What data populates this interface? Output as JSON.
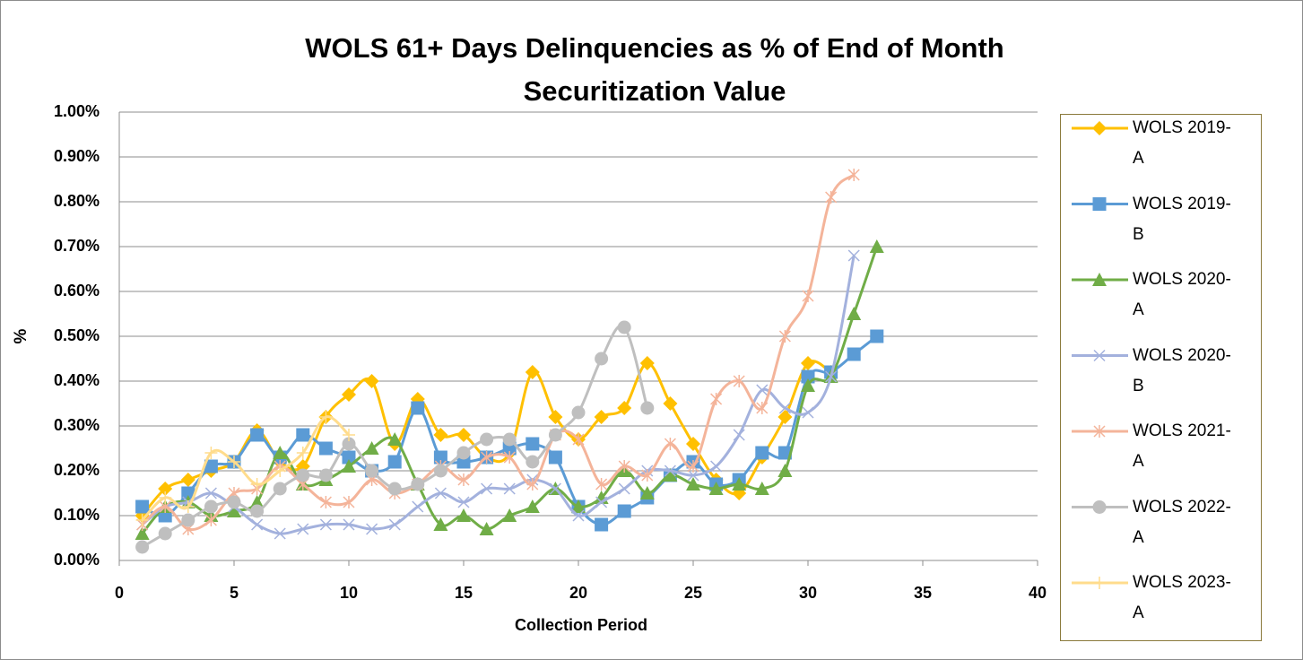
{
  "chart_data": {
    "type": "line",
    "title": "WOLS 61+ Days Delinquencies as % of End of Month Securitization Value",
    "x_label": "Collection Period",
    "y_label": "%",
    "x": [
      1,
      2,
      3,
      4,
      5,
      6,
      7,
      8,
      9,
      10,
      11,
      12,
      13,
      14,
      15,
      16,
      17,
      18,
      19,
      20,
      21,
      22,
      23,
      24,
      25,
      26,
      27,
      28,
      29,
      30,
      31,
      32,
      33
    ],
    "xlim": [
      0,
      40
    ],
    "xticks": [
      0,
      5,
      10,
      15,
      20,
      25,
      30,
      35,
      40
    ],
    "ylim": [
      0,
      1
    ],
    "yticks": [
      {
        "value": 0,
        "label": "0.00%"
      },
      {
        "value": 0.1,
        "label": "0.10%"
      },
      {
        "value": 0.2,
        "label": "0.20%"
      },
      {
        "value": 0.3,
        "label": "0.30%"
      },
      {
        "value": 0.4,
        "label": "0.40%"
      },
      {
        "value": 0.5,
        "label": "0.50%"
      },
      {
        "value": 0.6,
        "label": "0.60%"
      },
      {
        "value": 0.7,
        "label": "0.70%"
      },
      {
        "value": 0.8,
        "label": "0.80%"
      },
      {
        "value": 0.9,
        "label": "0.90%"
      },
      {
        "value": 1,
        "label": "1.00%"
      }
    ],
    "grid": true,
    "legend": "right",
    "series": [
      {
        "name": "WOLS 2019-A",
        "color": "#FFC000",
        "marker": "diamond",
        "values": [
          0.1,
          0.16,
          0.18,
          0.2,
          0.22,
          0.29,
          0.22,
          0.21,
          0.32,
          0.37,
          0.4,
          0.26,
          0.36,
          0.28,
          0.28,
          0.23,
          0.24,
          0.42,
          0.32,
          0.27,
          0.32,
          0.34,
          0.44,
          0.35,
          0.26,
          0.18,
          0.15,
          0.23,
          0.32,
          0.44,
          0.42,
          null,
          null
        ]
      },
      {
        "name": "WOLS 2019-B",
        "color": "#5B9BD5",
        "marker": "square",
        "values": [
          0.12,
          0.1,
          0.15,
          0.21,
          0.22,
          0.28,
          0.23,
          0.28,
          0.25,
          0.23,
          0.2,
          0.22,
          0.34,
          0.23,
          0.22,
          0.23,
          0.25,
          0.26,
          0.23,
          0.12,
          0.08,
          0.11,
          0.14,
          0.19,
          0.22,
          0.17,
          0.18,
          0.24,
          0.24,
          0.41,
          0.42,
          0.46,
          0.5
        ]
      },
      {
        "name": "WOLS 2020-A",
        "color": "#70AD47",
        "marker": "triangle",
        "values": [
          0.06,
          0.12,
          0.13,
          0.1,
          0.11,
          0.13,
          0.24,
          0.17,
          0.18,
          0.21,
          0.25,
          0.27,
          0.17,
          0.08,
          0.1,
          0.07,
          0.1,
          0.12,
          0.16,
          0.12,
          0.14,
          0.2,
          0.15,
          0.19,
          0.17,
          0.16,
          0.17,
          0.16,
          0.2,
          0.39,
          0.41,
          0.55,
          0.7
        ]
      },
      {
        "name": "WOLS 2020-B",
        "color": "#A3B1DD",
        "marker": "x",
        "values": [
          0.08,
          0.12,
          0.13,
          0.15,
          0.12,
          0.08,
          0.06,
          0.07,
          0.08,
          0.08,
          0.07,
          0.08,
          0.12,
          0.15,
          0.13,
          0.16,
          0.16,
          0.18,
          0.16,
          0.1,
          0.13,
          0.16,
          0.2,
          0.2,
          0.19,
          0.21,
          0.28,
          0.38,
          0.34,
          0.33,
          0.41,
          0.68,
          null
        ]
      },
      {
        "name": "WOLS 2021-A",
        "color": "#F4B49A",
        "marker": "star",
        "values": [
          0.08,
          0.12,
          0.07,
          0.09,
          0.15,
          0.16,
          0.21,
          0.17,
          0.13,
          0.13,
          0.18,
          0.15,
          0.17,
          0.21,
          0.18,
          0.23,
          0.23,
          0.17,
          0.28,
          0.27,
          0.17,
          0.21,
          0.19,
          0.26,
          0.21,
          0.36,
          0.4,
          0.34,
          0.5,
          0.59,
          0.81,
          0.86,
          null
        ]
      },
      {
        "name": "WOLS 2022-A",
        "color": "#BFBFBF",
        "marker": "circle",
        "values": [
          0.03,
          0.06,
          0.09,
          0.12,
          0.13,
          0.11,
          0.16,
          0.19,
          0.19,
          0.26,
          0.2,
          0.16,
          0.17,
          0.2,
          0.24,
          0.27,
          0.27,
          0.22,
          0.28,
          0.33,
          0.45,
          0.52,
          0.34,
          null,
          null,
          null,
          null,
          null,
          null,
          null,
          null,
          null,
          null
        ]
      },
      {
        "name": "WOLS 2023-A",
        "color": "#FFDC8C",
        "marker": "plus",
        "values": [
          0.09,
          0.14,
          0.12,
          0.24,
          0.22,
          0.17,
          0.2,
          0.24,
          0.32,
          0.28,
          null,
          null,
          null,
          null,
          null,
          null,
          null,
          null,
          null,
          null,
          null,
          null,
          null,
          null,
          null,
          null,
          null,
          null,
          null,
          null,
          null,
          null,
          null
        ]
      }
    ]
  }
}
